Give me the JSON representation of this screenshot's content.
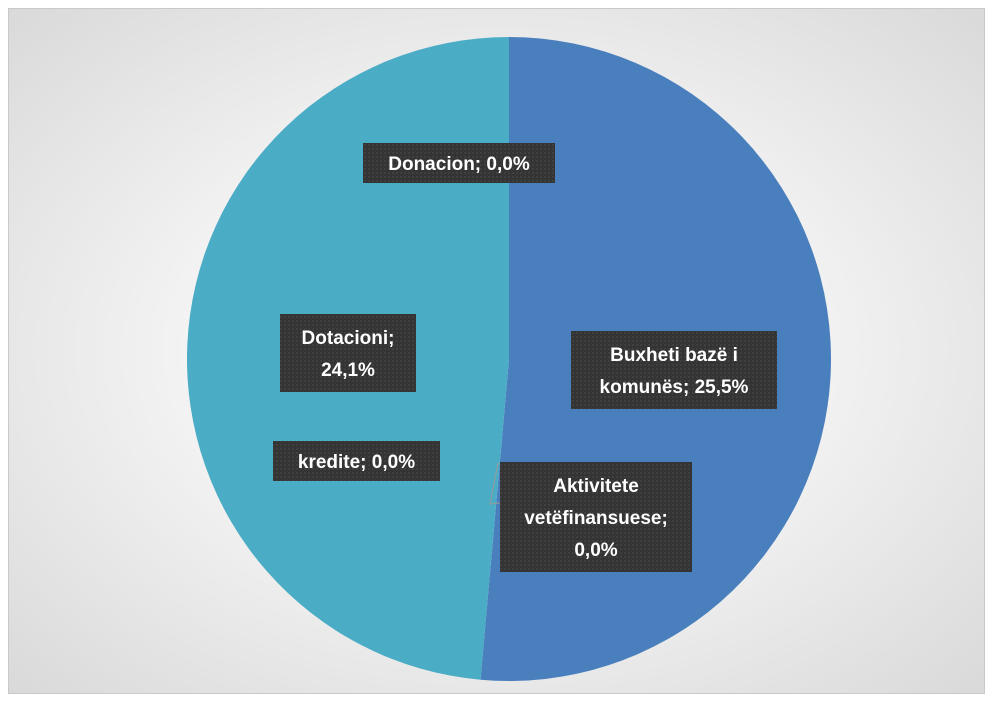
{
  "chart_data": {
    "type": "pie",
    "title": "",
    "slices": [
      {
        "label": "Buxheti bazë i komunës",
        "value": 25.5,
        "display": "25,5%",
        "color": "#4a7fbe"
      },
      {
        "label": "Aktivitete vetëfinansuese",
        "value": 0.0,
        "display": "0,0%",
        "color": "#4bacc6"
      },
      {
        "label": "kredite",
        "value": 0.0,
        "display": "0,0%",
        "color": "#4bacc6"
      },
      {
        "label": "Dotacioni",
        "value": 24.1,
        "display": "24,1%",
        "color": "#4bacc6"
      },
      {
        "label": "Donacion",
        "value": 0.0,
        "display": "0,0%",
        "color": "#4bacc6"
      }
    ],
    "data_labels": [
      {
        "lines": [
          "Donacion; 0,0%"
        ]
      },
      {
        "lines": [
          "Dotacioni;",
          "24,1%"
        ]
      },
      {
        "lines": [
          "Buxheti bazë i",
          "komunës; 25,5%"
        ]
      },
      {
        "lines": [
          "kredite; 0,0%"
        ]
      },
      {
        "lines": [
          "Aktivitete",
          "vetëfinansuese;",
          "0,0%"
        ]
      }
    ],
    "legend": "none",
    "label_background": "#3a3a3a",
    "label_text_color": "#ffffff"
  }
}
